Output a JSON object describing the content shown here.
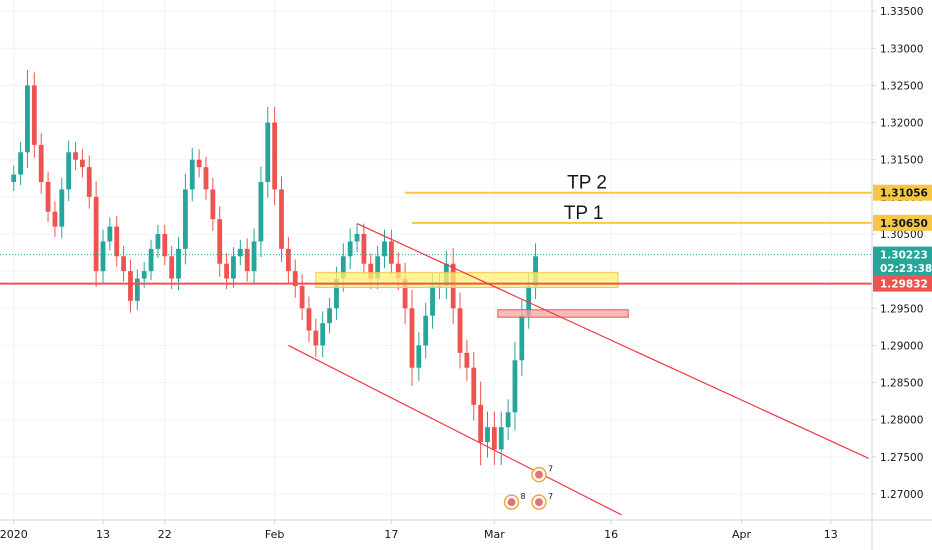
{
  "chart_data": {
    "type": "candlestick",
    "symbol_scale": {
      "ymin": 1.2665,
      "ymax": 1.3365
    },
    "y_ticks": [
      "1.27000",
      "1.27500",
      "1.28000",
      "1.28500",
      "1.29000",
      "1.29500",
      "1.30000",
      "1.30500",
      "1.31000",
      "1.31500",
      "1.32000",
      "1.32500",
      "1.33000",
      "1.33500"
    ],
    "x_ticks": [
      "2020",
      "13",
      "22",
      "Feb",
      "17",
      "Mar",
      "16",
      "Apr",
      "13"
    ],
    "x_tick_values": [
      0,
      13,
      22,
      38,
      55,
      70,
      87,
      106,
      119
    ],
    "x_range": [
      -2,
      125
    ],
    "price_badges": [
      {
        "label": "1.31056",
        "value": 1.31056,
        "bg": "#f7c744",
        "fg": "#131722"
      },
      {
        "label": "1.30650",
        "value": 1.3065,
        "bg": "#f7c744",
        "fg": "#131722"
      },
      {
        "label": "1.30223",
        "value": 1.30223,
        "bg": "#26a69a",
        "fg": "#ffffff"
      },
      {
        "label": "02:23:38",
        "value": 1.30045,
        "bg": "#26a69a",
        "fg": "#ffffff"
      },
      {
        "label": "1.29832",
        "value": 1.29832,
        "bg": "#ef5350",
        "fg": "#ffffff"
      }
    ],
    "horizontal_lines": [
      {
        "name": "TP 2",
        "value": 1.31056,
        "from": 57,
        "color": "#f7c744"
      },
      {
        "name": "TP 1",
        "value": 1.3065,
        "from": 58,
        "color": "#f7c744"
      },
      {
        "name": "support",
        "value": 1.29832,
        "from": -2,
        "color": "#ef5350"
      }
    ],
    "last_price": 1.30223,
    "last_price_color": "#26a69a",
    "zones": [
      {
        "name": "yellow-zone",
        "x0": 44,
        "x1": 88,
        "y0": 1.2978,
        "y1": 1.2998,
        "fill": "#fff176",
        "stroke": "#f7c744"
      },
      {
        "name": "red-zone",
        "x0": 70.5,
        "x1": 89.5,
        "y0": 1.2938,
        "y1": 1.2948,
        "fill": "#f5a3a3",
        "stroke": "#ef5350"
      }
    ],
    "trendlines": [
      {
        "name": "channel-upper",
        "x0": 50,
        "y0": 1.3064,
        "x1": 124.5,
        "y1": 1.2748
      },
      {
        "name": "channel-lower",
        "x0": 40,
        "y0": 1.29,
        "x1": 88.5,
        "y1": 1.2672
      }
    ],
    "up_color": "#26a69a",
    "down_color": "#ef5350",
    "closes": [
      1.313,
      1.316,
      1.325,
      1.317,
      1.312,
      1.308,
      1.306,
      1.311,
      1.316,
      1.315,
      1.314,
      1.31,
      1.3,
      1.304,
      1.306,
      1.302,
      1.3,
      1.296,
      1.299,
      1.3,
      1.303,
      1.305,
      1.302,
      1.299,
      1.303,
      1.311,
      1.315,
      1.314,
      1.311,
      1.307,
      1.301,
      1.299,
      1.302,
      1.303,
      1.3,
      1.304,
      1.312,
      1.32,
      1.311,
      1.303,
      1.3,
      1.298,
      1.295,
      1.292,
      1.29,
      1.293,
      1.295,
      1.299,
      1.302,
      1.304,
      1.305,
      1.301,
      1.299,
      1.302,
      1.304,
      1.301,
      1.299,
      1.295,
      1.287,
      1.29,
      1.294,
      1.298,
      1.298,
      1.301,
      1.295,
      1.289,
      1.287,
      1.282,
      1.277,
      1.279,
      1.276,
      1.279,
      1.281,
      1.288,
      1.294,
      1.298,
      1.302
    ],
    "ranges": [
      0.0035,
      0.004,
      0.006,
      0.005,
      0.0045,
      0.004,
      0.004,
      0.0045,
      0.0045,
      0.004,
      0.004,
      0.0045,
      0.006,
      0.0045,
      0.0035,
      0.004,
      0.004,
      0.0045,
      0.0035,
      0.0035,
      0.0035,
      0.0035,
      0.0035,
      0.004,
      0.0045,
      0.006,
      0.0045,
      0.004,
      0.004,
      0.0045,
      0.005,
      0.004,
      0.0035,
      0.0035,
      0.004,
      0.005,
      0.006,
      0.006,
      0.006,
      0.005,
      0.0045,
      0.0045,
      0.0045,
      0.0045,
      0.0045,
      0.0045,
      0.004,
      0.0045,
      0.005,
      0.005,
      0.004,
      0.004,
      0.004,
      0.004,
      0.0045,
      0.0045,
      0.0045,
      0.006,
      0.007,
      0.005,
      0.005,
      0.005,
      0.005,
      0.005,
      0.006,
      0.006,
      0.005,
      0.006,
      0.009,
      0.006,
      0.006,
      0.006,
      0.005,
      0.007,
      0.006,
      0.005,
      0.005
    ],
    "events": [
      {
        "name": "event-flag-1",
        "x": 76.5,
        "value": 1.2726,
        "count": "7"
      },
      {
        "name": "event-flag-2",
        "x": 72.5,
        "value": 1.2689,
        "count": "8"
      },
      {
        "name": "event-flag-3",
        "x": 76.5,
        "value": 1.2689,
        "count": "7"
      }
    ]
  },
  "labels": {
    "tp2": "TP 2",
    "tp1": "TP 1"
  }
}
